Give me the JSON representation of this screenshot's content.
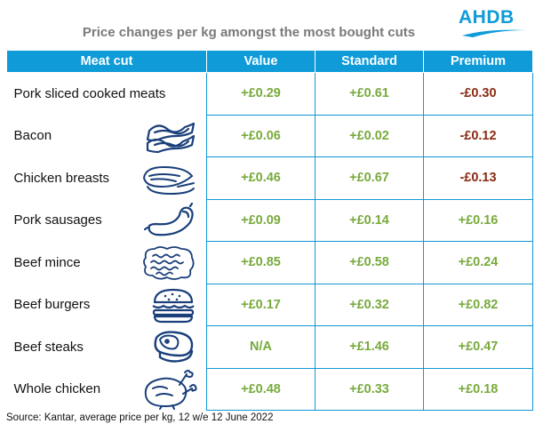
{
  "title": "Price changes per kg amongst the most bought cuts",
  "logo_text": "AHDB",
  "headers": [
    "Meat cut",
    "Value",
    "Standard",
    "Premium"
  ],
  "rows": [
    {
      "cut": "Pork sliced cooked meats",
      "icon": "none",
      "value": "+£0.29",
      "standard": "+£0.61",
      "premium": "-£0.30"
    },
    {
      "cut": "Bacon",
      "icon": "bacon-icon",
      "value": "+£0.06",
      "standard": "+£0.02",
      "premium": "-£0.12"
    },
    {
      "cut": "Chicken breasts",
      "icon": "chicken-breast-icon",
      "value": "+£0.46",
      "standard": "+£0.67",
      "premium": "-£0.13"
    },
    {
      "cut": "Pork sausages",
      "icon": "sausage-icon",
      "value": "+£0.09",
      "standard": "+£0.14",
      "premium": "+£0.16"
    },
    {
      "cut": "Beef mince",
      "icon": "mince-icon",
      "value": "+£0.85",
      "standard": "+£0.58",
      "premium": "+£0.24"
    },
    {
      "cut": "Beef burgers",
      "icon": "burger-icon",
      "value": "+£0.17",
      "standard": "+£0.32",
      "premium": "+£0.82"
    },
    {
      "cut": "Beef steaks",
      "icon": "steak-icon",
      "value": "N/A",
      "standard": "+£1.46",
      "premium": "+£0.47"
    },
    {
      "cut": "Whole chicken",
      "icon": "whole-chicken-icon",
      "value": "+£0.48",
      "standard": "+£0.33",
      "premium": "+£0.18"
    }
  ],
  "source": "Source: Kantar, average price per kg, 12 w/e 12 June 2022",
  "colors": {
    "accent": "#0e9bd8",
    "positive": "#78aa3c",
    "negative": "#8a2a12",
    "title": "#7a7a7a"
  }
}
